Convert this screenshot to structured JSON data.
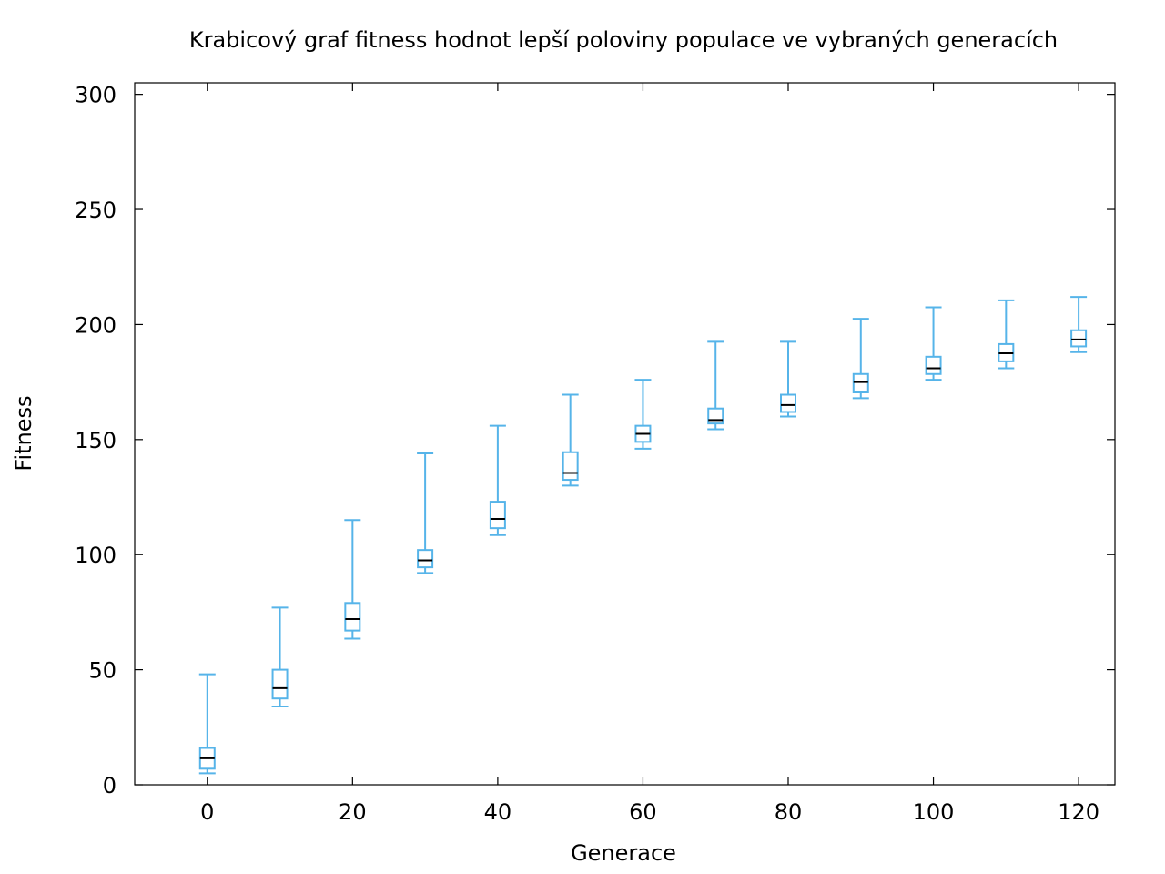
{
  "chart_data": {
    "type": "box",
    "title": "Krabicový graf fitness hodnot lepší poloviny populace ve vybraných generacích",
    "xlabel": "Generace",
    "ylabel": "Fitness",
    "xlim": [
      -10,
      125
    ],
    "ylim": [
      0,
      305
    ],
    "xticks": [
      "0",
      "20",
      "40",
      "60",
      "80",
      "100",
      "120"
    ],
    "yticks": [
      "0",
      "50",
      "100",
      "150",
      "200",
      "250",
      "300"
    ],
    "grid": false,
    "box_color": "#56b4e9",
    "median_color": "#000000",
    "boxes": [
      {
        "x": 0,
        "min": 5,
        "q1": 7,
        "median": 11.5,
        "q3": 16,
        "max": 48
      },
      {
        "x": 10,
        "min": 34,
        "q1": 37.5,
        "median": 42,
        "q3": 50,
        "max": 77
      },
      {
        "x": 20,
        "min": 63.5,
        "q1": 67,
        "median": 72,
        "q3": 79,
        "max": 115
      },
      {
        "x": 30,
        "min": 92,
        "q1": 94.5,
        "median": 97.5,
        "q3": 102,
        "max": 144
      },
      {
        "x": 40,
        "min": 108.5,
        "q1": 111.5,
        "median": 115.5,
        "q3": 123,
        "max": 156
      },
      {
        "x": 50,
        "min": 130,
        "q1": 132.5,
        "median": 135.5,
        "q3": 144.5,
        "max": 169.5
      },
      {
        "x": 60,
        "min": 146,
        "q1": 149,
        "median": 152.5,
        "q3": 156,
        "max": 176
      },
      {
        "x": 70,
        "min": 154.5,
        "q1": 157,
        "median": 158.5,
        "q3": 163.5,
        "max": 192.5
      },
      {
        "x": 80,
        "min": 160,
        "q1": 162,
        "median": 165,
        "q3": 169.5,
        "max": 192.5
      },
      {
        "x": 90,
        "min": 168,
        "q1": 170.5,
        "median": 175,
        "q3": 178.5,
        "max": 202.5
      },
      {
        "x": 100,
        "min": 176,
        "q1": 178.5,
        "median": 181,
        "q3": 186,
        "max": 207.5
      },
      {
        "x": 110,
        "min": 181,
        "q1": 184,
        "median": 187.5,
        "q3": 191.5,
        "max": 210.5
      },
      {
        "x": 120,
        "min": 188,
        "q1": 190.5,
        "median": 193.5,
        "q3": 197.5,
        "max": 212
      }
    ]
  }
}
